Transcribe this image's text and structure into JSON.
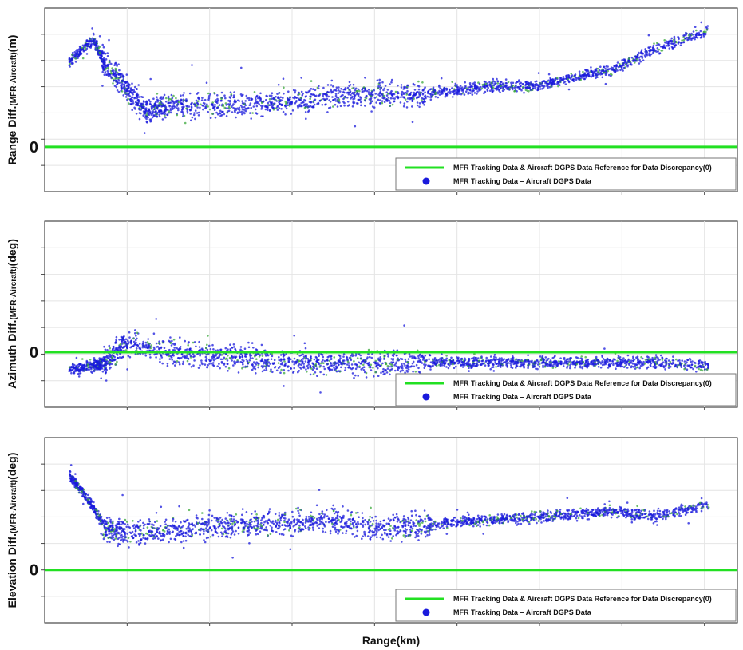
{
  "figure": {
    "xlabel": "Range(km)"
  },
  "colors": {
    "reference_line": "#22e022",
    "tracking_points": "#1a1adc",
    "tracking_points_alt": "#3aa83a",
    "grid": "#e4e4e4",
    "frame": "#222222"
  },
  "chart_data": [
    {
      "type": "scatter",
      "ylabel_main": "Range Diff.",
      "ylabel_sub": "(MFR-Aircraft)",
      "ylabel_unit": "(m)",
      "zero_label": "0",
      "xlabel": "",
      "grid": true,
      "legend_position": "bottom-right",
      "series": [
        {
          "name": "MFR Tracking Data & Aircraft DGPS Data Reference for Data Discrepancy(0)",
          "kind": "line",
          "values_y": 0
        },
        {
          "name": "MFR Tracking Data – Aircraft DGPS Data",
          "kind": "scatter",
          "trend": [
            [
              0.6,
              3.8
            ],
            [
              1.2,
              4.8
            ],
            [
              1.5,
              3.6
            ],
            [
              2.0,
              2.6
            ],
            [
              2.5,
              1.6
            ],
            [
              3.0,
              1.8
            ],
            [
              4.0,
              1.9
            ],
            [
              5.0,
              1.9
            ],
            [
              6.0,
              2.0
            ],
            [
              7.0,
              2.2
            ],
            [
              8.0,
              2.4
            ],
            [
              9.0,
              2.3
            ],
            [
              10.0,
              2.5
            ],
            [
              11.0,
              2.7
            ],
            [
              12.0,
              2.7
            ],
            [
              13.0,
              3.1
            ],
            [
              14.0,
              3.5
            ],
            [
              15.0,
              4.4
            ],
            [
              16.3,
              5.2
            ]
          ]
        }
      ]
    },
    {
      "type": "scatter",
      "ylabel_main": "Azimuth Diff.",
      "ylabel_sub": "(MFR-Aircraft)",
      "ylabel_unit": "(deg)",
      "zero_label": "0",
      "xlabel": "",
      "grid": true,
      "legend_position": "bottom-right",
      "series": [
        {
          "name": "MFR Tracking Data & Aircraft DGPS Data Reference for Data Discrepancy(0)",
          "kind": "line",
          "values_y": 0
        },
        {
          "name": "MFR Tracking Data – Aircraft DGPS Data",
          "kind": "scatter",
          "trend": [
            [
              0.6,
              -0.5
            ],
            [
              1.2,
              -0.4
            ],
            [
              1.5,
              -0.3
            ],
            [
              2.0,
              0.3
            ],
            [
              3.0,
              0.0
            ],
            [
              4.0,
              -0.1
            ],
            [
              5.0,
              -0.2
            ],
            [
              6.0,
              -0.3
            ],
            [
              7.0,
              -0.3
            ],
            [
              8.0,
              -0.3
            ],
            [
              9.0,
              -0.3
            ],
            [
              10.0,
              -0.3
            ],
            [
              11.0,
              -0.3
            ],
            [
              12.0,
              -0.3
            ],
            [
              13.0,
              -0.3
            ],
            [
              14.0,
              -0.3
            ],
            [
              15.0,
              -0.3
            ],
            [
              16.3,
              -0.4
            ]
          ]
        }
      ]
    },
    {
      "type": "scatter",
      "ylabel_main": "Elevation Diff.",
      "ylabel_sub": "(MFR-Aircraft)",
      "ylabel_unit": "(deg)",
      "zero_label": "0",
      "xlabel": "Range(km)",
      "grid": true,
      "legend_position": "bottom-right",
      "series": [
        {
          "name": "MFR Tracking Data & Aircraft DGPS Data Reference for Data Discrepancy(0)",
          "kind": "line",
          "values_y": 0
        },
        {
          "name": "MFR Tracking Data – Aircraft DGPS Data",
          "kind": "scatter",
          "trend": [
            [
              0.6,
              3.6
            ],
            [
              1.0,
              2.8
            ],
            [
              1.5,
              1.6
            ],
            [
              2.0,
              1.4
            ],
            [
              3.0,
              1.5
            ],
            [
              4.0,
              1.6
            ],
            [
              5.0,
              1.7
            ],
            [
              6.0,
              1.8
            ],
            [
              7.0,
              1.9
            ],
            [
              8.0,
              1.6
            ],
            [
              9.0,
              1.6
            ],
            [
              10.0,
              1.8
            ],
            [
              11.0,
              1.9
            ],
            [
              12.0,
              2.0
            ],
            [
              13.0,
              2.1
            ],
            [
              14.0,
              2.2
            ],
            [
              15.0,
              2.0
            ],
            [
              16.3,
              2.5
            ]
          ]
        }
      ]
    }
  ]
}
